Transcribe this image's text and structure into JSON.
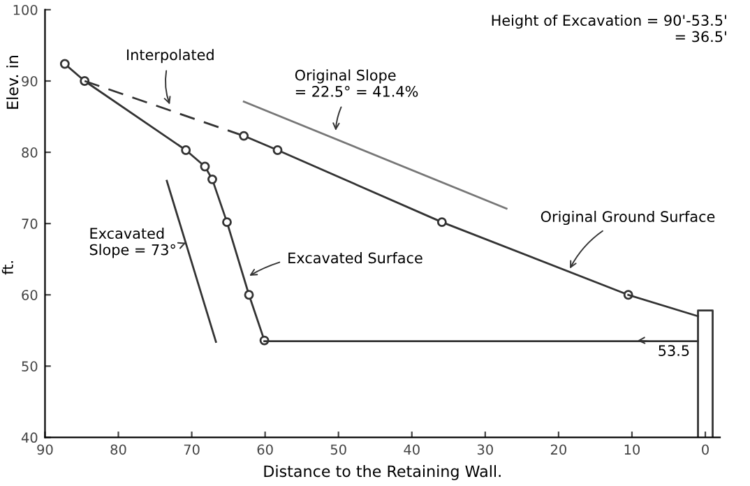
{
  "chart_data": {
    "type": "line",
    "xlabel": "Distance to the Retaining Wall.",
    "ylabel": "Elev. in",
    "xlim": [
      90,
      -2
    ],
    "ylim": [
      40,
      100
    ],
    "xticks": [
      90,
      80,
      70,
      60,
      50,
      40,
      30,
      20,
      10,
      0
    ],
    "yticks": [
      40,
      50,
      60,
      70,
      80,
      90,
      100
    ],
    "grid": false,
    "line_style": "solid",
    "series": [
      {
        "color": "#333333",
        "marker": "circle",
        "x": [
          87.3,
          84.6,
          70.8,
          68.2,
          67.2,
          65.2,
          62.2,
          60.1
        ],
        "values": [
          92.4,
          90,
          80.3,
          78,
          76.2,
          70.2,
          60,
          53.6
        ]
      },
      {
        "color": "#333333",
        "marker": "none",
        "x": [
          60.1,
          1
        ],
        "values": [
          53.5,
          53.5
        ]
      },
      {
        "color": "#333333",
        "line_style": "dashed",
        "x": [
          84.6,
          62.9
        ],
        "values": [
          90,
          82.3
        ]
      },
      {
        "color": "#333333",
        "marker": "circle",
        "x": [
          62.9,
          58.3,
          35.9,
          10.5
        ],
        "values": [
          82.3,
          80.3,
          70.2,
          60
        ]
      },
      {
        "color": "#333333",
        "marker": "none",
        "x": [
          10.5,
          1
        ],
        "values": [
          60,
          57
        ]
      },
      {
        "color": "#777777",
        "marker": "none",
        "x": [
          62.9,
          27.1
        ],
        "values": [
          87.1,
          72.1
        ]
      },
      {
        "color": "#333333",
        "marker": "none",
        "x": [
          73.4,
          66.7
        ],
        "values": [
          76,
          53.4
        ]
      },
      {
        "color": "#333333",
        "marker": "none",
        "x": [
          1,
          1,
          -1,
          -1
        ],
        "values": [
          40,
          57.8,
          57.8,
          40
        ]
      }
    ],
    "annotations": [
      {
        "text": "Interpolated",
        "x": 72.8,
        "y": 86.2
      },
      {
        "text": "Original Slope\n= 22.5° = 41.4%",
        "x": 50.4,
        "y": 82.5
      },
      {
        "text": "Original Ground Surface",
        "x": 18.7,
        "y": 63.2
      },
      {
        "text": "Excavated Surface",
        "x": 62.6,
        "y": 62.4
      },
      {
        "text": "Excavated\nSlope = 73°",
        "x": 70.8,
        "y": 67.3
      },
      {
        "text": "53.5",
        "x": 9.8,
        "y": 53.5
      },
      "Height of Excavation = 90'-53.5'\n= 36.5'",
      "ft."
    ]
  }
}
